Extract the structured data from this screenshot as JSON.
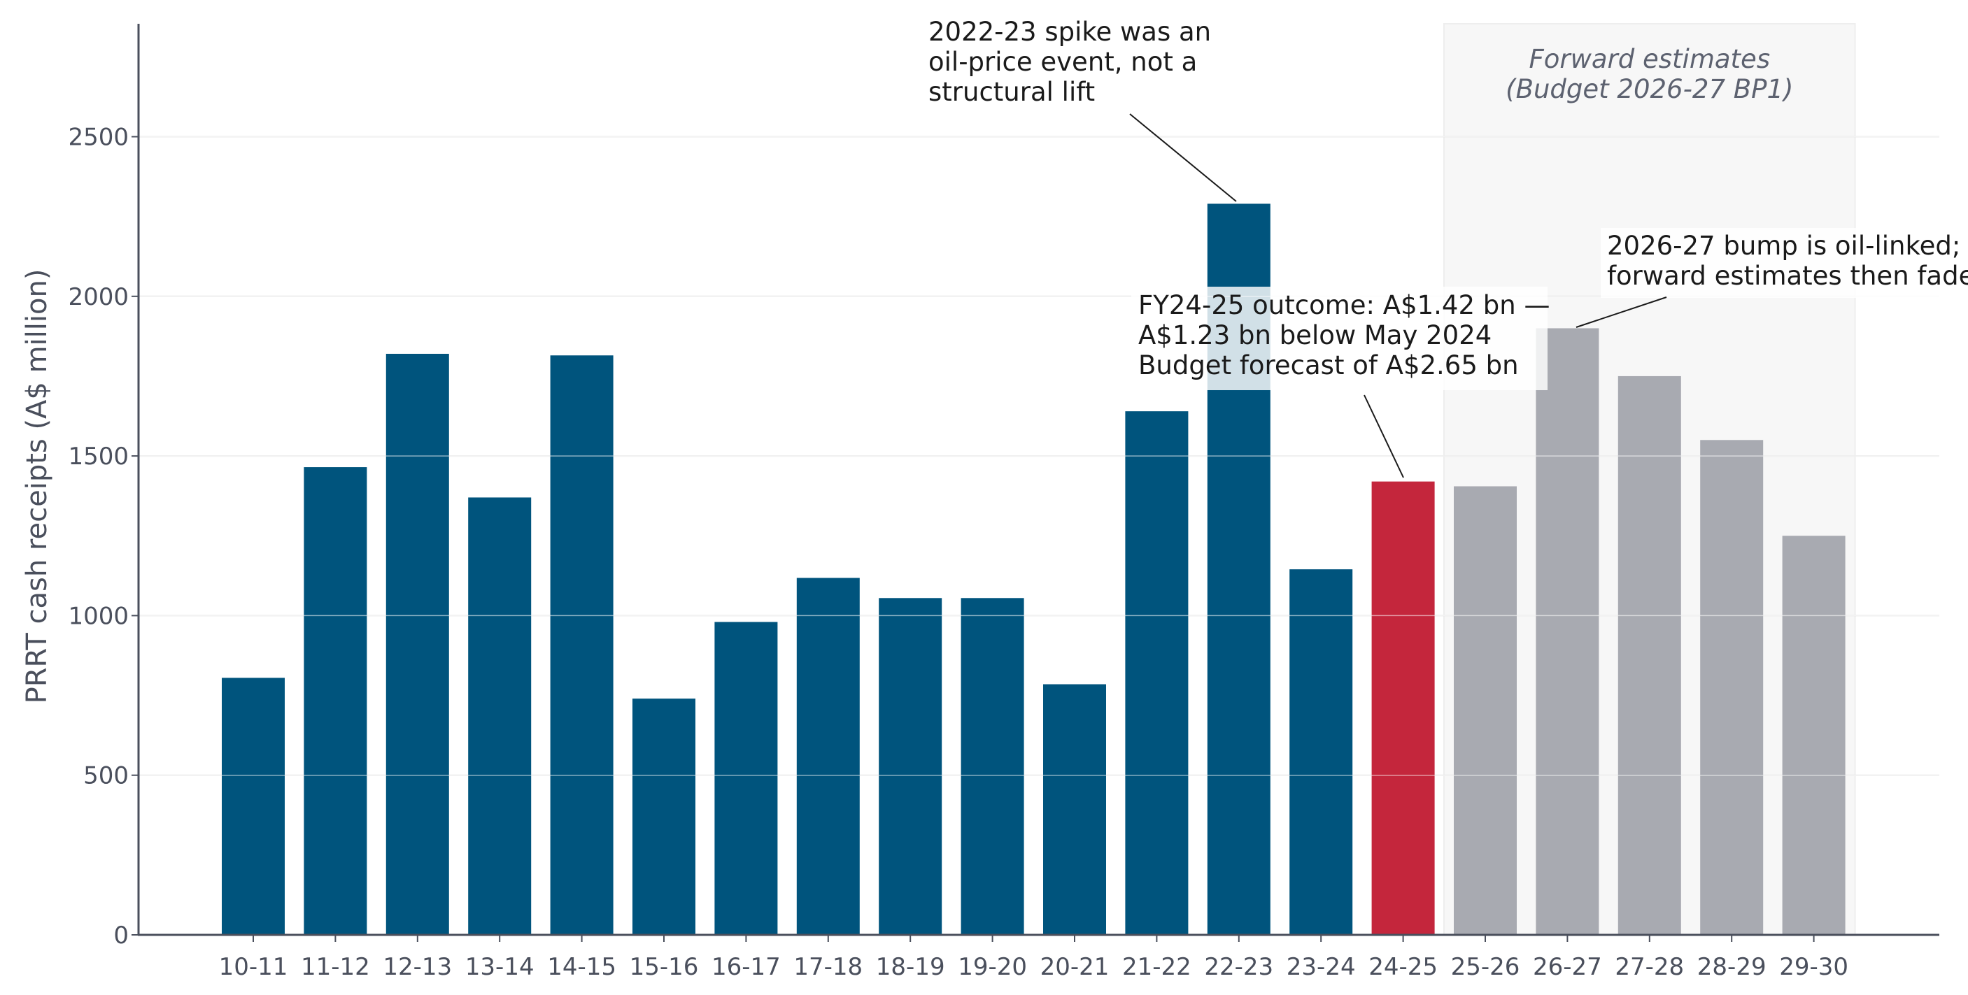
{
  "chart_data": {
    "type": "bar",
    "title": "",
    "xlabel": "",
    "ylabel": "PRRT cash receipts (A$ million)",
    "ylim": [
      0,
      2850
    ],
    "yticks": [
      0,
      500,
      1000,
      1500,
      2000,
      2500
    ],
    "grid": "horizontal",
    "categories": [
      "10-11",
      "11-12",
      "12-13",
      "13-14",
      "14-15",
      "15-16",
      "16-17",
      "17-18",
      "18-19",
      "19-20",
      "20-21",
      "21-22",
      "22-23",
      "23-24",
      "24-25",
      "25-26",
      "26-27",
      "27-28",
      "28-29",
      "29-30"
    ],
    "values": [
      805,
      1465,
      1820,
      1370,
      1815,
      740,
      980,
      1118,
      1055,
      1055,
      785,
      1640,
      2290,
      1145,
      1420,
      1405,
      1900,
      1750,
      1550,
      1250
    ],
    "bar_groups": [
      "actual",
      "actual",
      "actual",
      "actual",
      "actual",
      "actual",
      "actual",
      "actual",
      "actual",
      "actual",
      "actual",
      "actual",
      "actual",
      "actual",
      "highlight",
      "forecast",
      "forecast",
      "forecast",
      "forecast",
      "forecast"
    ],
    "colors": {
      "actual": "#00547d",
      "highlight": "#c4263c",
      "forecast": "#a8aab1",
      "shade": "#f7f7f7",
      "grid": "#e4e4e4",
      "axis": "#4a4f5c"
    },
    "forecast_region": {
      "start_category": "25-26",
      "end_category": "29-30",
      "label_lines": [
        "Forward estimates",
        "(Budget 2026-27 BP1)"
      ]
    },
    "annotations": [
      {
        "id": "spike",
        "target": "22-23",
        "lines": [
          "2022-23 spike was an",
          "oil-price event, not a",
          "structural lift"
        ]
      },
      {
        "id": "outcome",
        "target": "24-25",
        "lines": [
          "FY24-25 outcome: A$1.42 bn —",
          "A$1.23 bn below May 2024",
          "Budget forecast of A$2.65 bn"
        ]
      },
      {
        "id": "bump",
        "target": "26-27",
        "lines": [
          "2026-27 bump is oil-linked;",
          "forward estimates then fade"
        ]
      }
    ]
  }
}
